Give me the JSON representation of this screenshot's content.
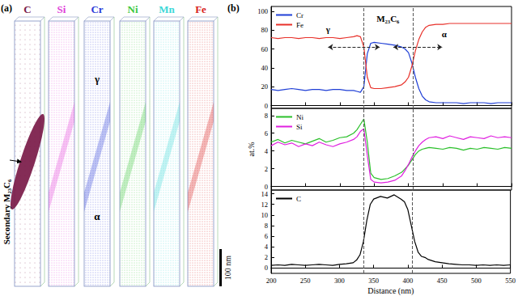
{
  "panel_a": {
    "label": "(a)",
    "elements": [
      {
        "name": "C",
        "color": "#7a1a48"
      },
      {
        "name": "Si",
        "color": "#e03cd8"
      },
      {
        "name": "Cr",
        "color": "#2a3ad8"
      },
      {
        "name": "Ni",
        "color": "#3cc83c"
      },
      {
        "name": "Mn",
        "color": "#3cd8d8"
      },
      {
        "name": "Fe",
        "color": "#d81c1c"
      }
    ],
    "precipitate_label": "Secondary M₂₃C₆",
    "phase_labels": [
      "γ",
      "α"
    ],
    "scale_bar": "100 nm"
  },
  "panel_b": {
    "label": "(b)"
  },
  "chart_data": [
    {
      "type": "line",
      "x": [
        200,
        210,
        220,
        230,
        240,
        250,
        260,
        270,
        280,
        290,
        300,
        310,
        320,
        325,
        330,
        335,
        340,
        345,
        350,
        360,
        370,
        380,
        390,
        395,
        400,
        405,
        410,
        415,
        420,
        425,
        430,
        440,
        450,
        460,
        470,
        480,
        490,
        500,
        510,
        520,
        530,
        540,
        550
      ],
      "series": [
        {
          "name": "Cr",
          "color": "#1f3fd6",
          "values": [
            17,
            16,
            17,
            18,
            17,
            16,
            17,
            17,
            16,
            17,
            17,
            16,
            16,
            15,
            14,
            20,
            55,
            66,
            67,
            66,
            65,
            64,
            62,
            60,
            56,
            45,
            30,
            18,
            10,
            6,
            4,
            3,
            3,
            3,
            3,
            2,
            3,
            3,
            3,
            2,
            3,
            3,
            3
          ]
        },
        {
          "name": "Fe",
          "color": "#e8312a",
          "values": [
            72,
            71,
            72,
            72,
            71,
            72,
            72,
            71,
            72,
            72,
            71,
            72,
            73,
            74,
            73,
            62,
            30,
            19,
            18,
            18,
            19,
            20,
            22,
            25,
            30,
            42,
            58,
            70,
            78,
            83,
            85,
            86,
            86,
            87,
            87,
            87,
            87,
            87,
            87,
            87,
            87,
            87,
            87
          ]
        }
      ],
      "xlim": [
        200,
        550
      ],
      "xticks": [
        200,
        250,
        300,
        350,
        400,
        450,
        500,
        550
      ],
      "ylim": [
        -3,
        105
      ],
      "yticks": [
        0,
        20,
        40,
        60,
        80,
        100
      ],
      "vlines": [
        335,
        406
      ],
      "annotations": [
        {
          "text": "γ",
          "x": 283,
          "y": 81
        },
        {
          "text": "M₂₃C₆",
          "x": 370,
          "y": 92
        },
        {
          "text": "α",
          "x": 452,
          "y": 76
        }
      ],
      "arrows": [
        {
          "x": [
            283,
            358
          ],
          "y": 62
        },
        {
          "x": [
            378,
            449
          ],
          "y": 62
        }
      ],
      "legend": "upper left",
      "grid": false,
      "tick_labels": "y"
    },
    {
      "type": "line",
      "x": [
        200,
        210,
        220,
        230,
        240,
        250,
        260,
        270,
        280,
        290,
        300,
        310,
        320,
        325,
        330,
        335,
        340,
        345,
        350,
        360,
        370,
        380,
        390,
        395,
        400,
        405,
        410,
        415,
        420,
        425,
        430,
        440,
        450,
        460,
        470,
        480,
        490,
        500,
        510,
        520,
        530,
        540,
        550
      ],
      "series": [
        {
          "name": "Ni",
          "color": "#2bc02b",
          "values": [
            5.0,
            5.3,
            4.9,
            5.2,
            5.0,
            4.8,
            5.1,
            5.4,
            5.0,
            5.2,
            5.5,
            5.6,
            6.0,
            6.4,
            7.0,
            7.6,
            5.0,
            1.5,
            1.0,
            0.8,
            0.9,
            1.2,
            1.6,
            2.0,
            2.4,
            3.0,
            3.6,
            4.0,
            4.2,
            4.3,
            4.4,
            4.3,
            4.2,
            4.4,
            4.3,
            4.1,
            4.3,
            4.2,
            4.4,
            4.3,
            4.2,
            4.4,
            4.3
          ]
        },
        {
          "name": "Si",
          "color": "#e020e0",
          "values": [
            4.6,
            5.0,
            4.7,
            4.9,
            4.5,
            4.8,
            4.6,
            5.0,
            4.7,
            4.5,
            4.8,
            5.0,
            5.3,
            5.6,
            6.2,
            6.5,
            3.5,
            0.8,
            0.5,
            0.4,
            0.5,
            0.7,
            1.2,
            1.8,
            2.5,
            3.3,
            4.0,
            4.6,
            5.0,
            5.3,
            5.5,
            5.6,
            5.4,
            5.7,
            5.5,
            5.3,
            5.6,
            5.5,
            5.4,
            5.7,
            5.5,
            5.6,
            5.5
          ]
        }
      ],
      "y_label": "at.%",
      "xlim": [
        200,
        550
      ],
      "xticks": [
        200,
        250,
        300,
        350,
        400,
        450,
        500,
        550
      ],
      "ylim": [
        -0.4,
        8.8
      ],
      "yticks": [
        0,
        2,
        4,
        6,
        8
      ],
      "vlines": [
        335,
        406
      ],
      "legend": "upper left",
      "grid": false,
      "tick_labels": "y"
    },
    {
      "type": "line",
      "x": [
        200,
        210,
        220,
        230,
        240,
        250,
        260,
        270,
        280,
        290,
        300,
        310,
        320,
        325,
        330,
        335,
        340,
        345,
        350,
        360,
        370,
        380,
        390,
        395,
        400,
        405,
        410,
        415,
        420,
        425,
        430,
        440,
        450,
        460,
        470,
        480,
        490,
        500,
        510,
        520,
        530,
        540,
        550
      ],
      "series": [
        {
          "name": "C",
          "color": "#000000",
          "values": [
            0.5,
            0.6,
            0.5,
            0.7,
            0.6,
            0.5,
            0.6,
            0.7,
            0.6,
            0.5,
            0.7,
            0.8,
            1.0,
            1.5,
            2.5,
            5.0,
            9.0,
            12.0,
            13.0,
            13.5,
            13.2,
            13.8,
            13.0,
            12.5,
            11.0,
            8.0,
            5.0,
            3.0,
            2.2,
            2.0,
            1.6,
            1.2,
            1.0,
            0.8,
            0.7,
            0.6,
            0.6,
            0.5,
            0.6,
            0.5,
            0.6,
            0.5,
            0.6
          ]
        }
      ],
      "x_label": "Distance (nm)",
      "xlim": [
        200,
        550
      ],
      "xticks": [
        200,
        250,
        300,
        350,
        400,
        450,
        500,
        550
      ],
      "ylim": [
        -1,
        14.7
      ],
      "yticks": [
        0,
        2,
        4,
        6,
        8,
        10,
        12,
        14
      ],
      "vlines": [
        335,
        406
      ],
      "legend": "upper left",
      "grid": false
    }
  ]
}
